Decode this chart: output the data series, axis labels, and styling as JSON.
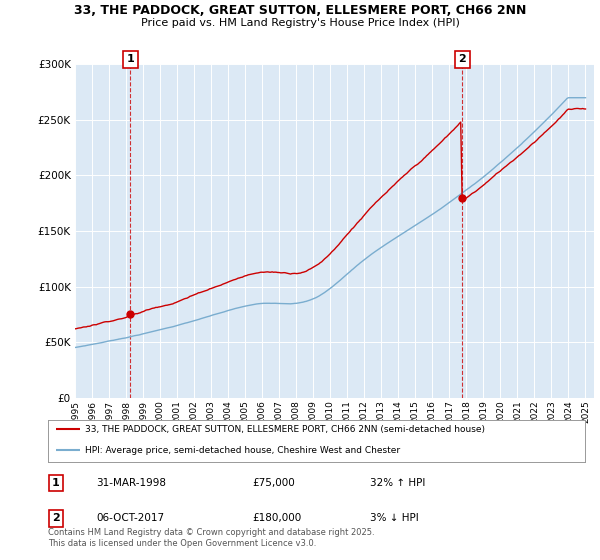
{
  "title": "33, THE PADDOCK, GREAT SUTTON, ELLESMERE PORT, CH66 2NN",
  "subtitle": "Price paid vs. HM Land Registry's House Price Index (HPI)",
  "legend_label_red": "33, THE PADDOCK, GREAT SUTTON, ELLESMERE PORT, CH66 2NN (semi-detached house)",
  "legend_label_blue": "HPI: Average price, semi-detached house, Cheshire West and Chester",
  "annotation1_date": "31-MAR-1998",
  "annotation1_price": "£75,000",
  "annotation1_hpi": "32% ↑ HPI",
  "annotation2_date": "06-OCT-2017",
  "annotation2_price": "£180,000",
  "annotation2_hpi": "3% ↓ HPI",
  "footer": "Contains HM Land Registry data © Crown copyright and database right 2025.\nThis data is licensed under the Open Government Licence v3.0.",
  "ylim": [
    0,
    300000
  ],
  "yticks": [
    0,
    50000,
    100000,
    150000,
    200000,
    250000,
    300000
  ],
  "background_color": "#ffffff",
  "plot_bg_color": "#dce9f5",
  "grid_color": "#ffffff",
  "red_color": "#cc0000",
  "blue_color": "#7aadcf",
  "pt1_year": 1998.25,
  "pt1_price": 75000,
  "pt2_year": 2017.77,
  "pt2_price": 180000
}
